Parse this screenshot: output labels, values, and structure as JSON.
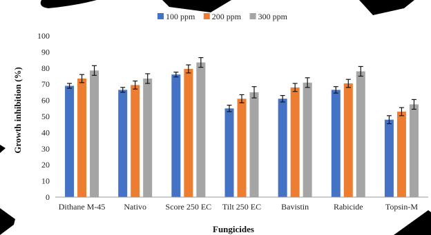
{
  "chart_data": {
    "type": "bar",
    "title": "",
    "xlabel": "Fungicides",
    "ylabel": "Growth inhibition  (%)",
    "ylim": [
      0,
      100
    ],
    "yticks": [
      0,
      10,
      20,
      30,
      40,
      50,
      60,
      70,
      80,
      90,
      100
    ],
    "grid": false,
    "legend_position": "top-center",
    "categories": [
      "Dithane M-45",
      "Nativo",
      "Score 250 EC",
      "Tilt 250 EC",
      "Bavistin",
      "Rabicide",
      "Topsin-M"
    ],
    "series": [
      {
        "name": "100 ppm",
        "color": "#4472C4",
        "values": [
          69,
          66.5,
          76,
          55,
          61,
          66.5,
          48
        ],
        "errors": [
          1.5,
          1.5,
          1.5,
          2,
          2,
          2,
          2.5
        ]
      },
      {
        "name": "200 ppm",
        "color": "#ED7D31",
        "values": [
          73.5,
          69.5,
          79.5,
          61,
          68,
          70.5,
          53
        ],
        "errors": [
          2.5,
          2.5,
          2.5,
          2.5,
          2.5,
          2.5,
          2.5
        ]
      },
      {
        "name": "300 ppm",
        "color": "#A5A5A5",
        "values": [
          78.5,
          73.5,
          83.5,
          65,
          71,
          78,
          57.5
        ],
        "errors": [
          3,
          3,
          3,
          3.5,
          3,
          3,
          3
        ]
      }
    ]
  }
}
